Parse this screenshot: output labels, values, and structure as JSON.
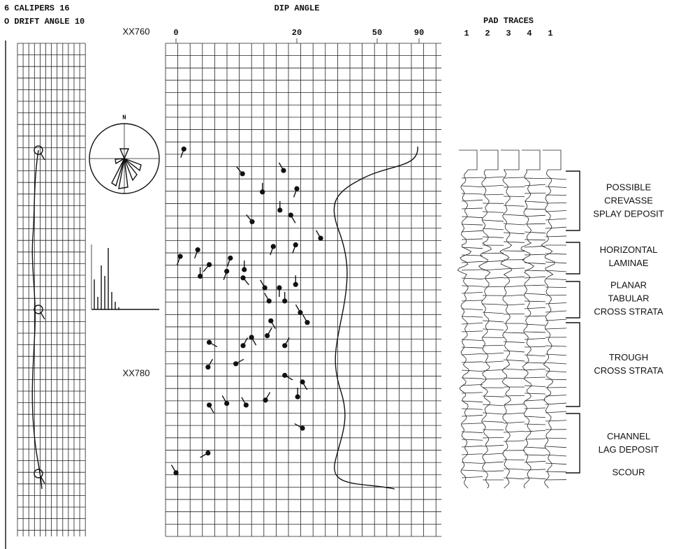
{
  "header": {
    "calipers": "6 CALIPERS 16",
    "drift_angle": "O DRIFT ANGLE 10",
    "dip_angle": "DIP ANGLE",
    "pad_traces": "PAD TRACES",
    "pad_numbers": [
      "1",
      "2",
      "3",
      "4",
      "1"
    ]
  },
  "chart_data": {
    "type": "tadpole",
    "xlim": [
      0,
      90
    ],
    "xticks": [
      0,
      20,
      50,
      90
    ],
    "depth_labels": [
      "XX760",
      "XX780"
    ],
    "rose_north": "N",
    "dips": {
      "depth": [
        766.4,
        767.9,
        769.0,
        767.7,
        768.8,
        770.8,
        770.1,
        770.4,
        771.8,
        772.3,
        772.2,
        772.9,
        772.5,
        773.4,
        773.0,
        773.7,
        774.1,
        773.8,
        774.2,
        774.8,
        774.8,
        774.6,
        775.6,
        775.6,
        776.3,
        776.8,
        776.9,
        777.8,
        777.7,
        778.1,
        778.3,
        778.3,
        779.6,
        779.4,
        780.1,
        780.5,
        781.6,
        781.8,
        781.9,
        781.9,
        781.4,
        783.3,
        784.8,
        786.0
      ],
      "dip": [
        1.3,
        11.0,
        14.3,
        17.8,
        20.0,
        12.6,
        17.2,
        19.0,
        28.9,
        16.1,
        19.8,
        0.7,
        3.6,
        5.5,
        9.0,
        11.3,
        4.0,
        8.4,
        11.1,
        14.7,
        17.1,
        19.8,
        15.4,
        18.0,
        21.3,
        15.7,
        23.9,
        12.5,
        15.1,
        5.5,
        11.1,
        18.0,
        5.3,
        9.9,
        18.0,
        22.1,
        14.8,
        8.4,
        5.5,
        11.6,
        20.3,
        22.1,
        5.3,
        0.0
      ],
      "azimuth": [
        200,
        320,
        0,
        330,
        200,
        320,
        0,
        150,
        330,
        200,
        200,
        200,
        200,
        220,
        200,
        0,
        0,
        200,
        140,
        330,
        180,
        0,
        330,
        0,
        330,
        150,
        330,
        150,
        30,
        120,
        30,
        30,
        30,
        60,
        120,
        150,
        30,
        330,
        150,
        330,
        0,
        300,
        240,
        330
      ]
    }
  },
  "interpretation": [
    {
      "lines": [
        "POSSIBLE",
        "CREVASSE",
        "SPLAY DEPOSIT"
      ]
    },
    {
      "lines": [
        "HORIZONTAL",
        "LAMINAE"
      ]
    },
    {
      "lines": [
        "PLANAR",
        "TABULAR",
        "CROSS STRATA"
      ]
    },
    {
      "lines": [
        "TROUGH",
        "CROSS STRATA"
      ]
    },
    {
      "lines": [
        "CHANNEL",
        "LAG DEPOSIT"
      ]
    },
    {
      "lines": [
        "SCOUR"
      ]
    }
  ]
}
